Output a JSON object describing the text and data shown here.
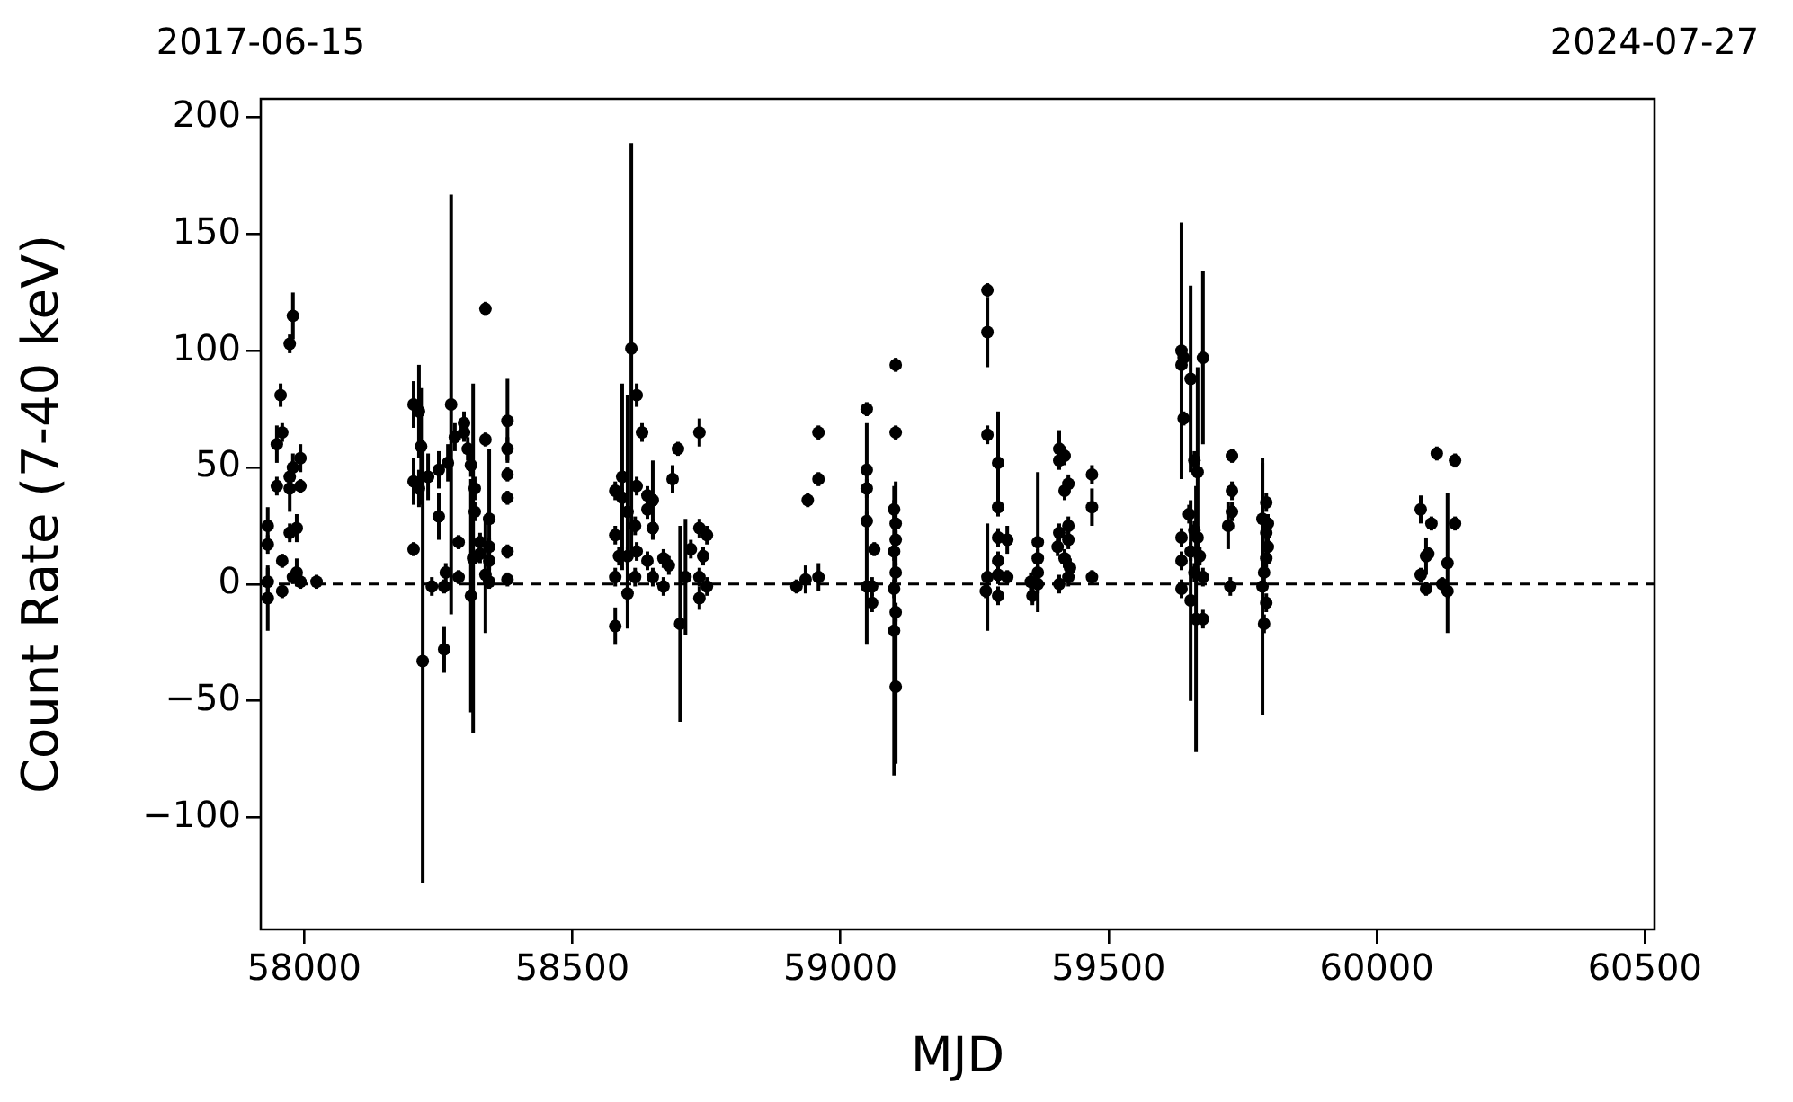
{
  "chart_data": {
    "type": "scatter",
    "xlabel": "MJD",
    "ylabel": "Count Rate (7-40 keV)",
    "xlim": [
      57919,
      60518
    ],
    "xticks": [
      58000,
      58500,
      59000,
      59500,
      60000,
      60500
    ],
    "annotations": [
      "2017-06-15",
      "2024-07-27"
    ],
    "ylim": [
      -148,
      208
    ],
    "yticks": [
      {
        "value": -100,
        "label": "−100"
      },
      {
        "value": -50,
        "label": "−50"
      },
      0,
      50,
      100,
      150,
      200
    ],
    "grid": false,
    "legend": false,
    "marker": "circle",
    "ref_lines": [
      {
        "axis": "y",
        "value": 0,
        "color": "#000000",
        "line_style": "dashed"
      }
    ],
    "series": [
      {
        "color": "#000000",
        "x": [
          57932,
          57932,
          57932,
          57932,
          57959,
          57959,
          57949,
          57956,
          57959,
          57949,
          57973,
          57979,
          57973,
          57973,
          57979,
          57993,
          57993,
          57973,
          57986,
          57986,
          57979,
          57993,
          58023,
          58204,
          58214,
          58204,
          58214,
          58204,
          58221,
          58218,
          58231,
          58238,
          58251,
          58251,
          58261,
          58268,
          58274,
          58264,
          58261,
          58281,
          58298,
          58305,
          58298,
          58288,
          58288,
          58311,
          58318,
          58315,
          58311,
          58318,
          58328,
          58338,
          58338,
          58328,
          58345,
          58345,
          58345,
          58338,
          58345,
          58379,
          58379,
          58379,
          58379,
          58379,
          58379,
          58580,
          58580,
          58580,
          58580,
          58587,
          58593,
          58593,
          58603,
          58603,
          58610,
          58603,
          58620,
          58630,
          58620,
          58640,
          58617,
          58620,
          58617,
          58640,
          58650,
          58650,
          58640,
          58650,
          58670,
          58680,
          58670,
          58687,
          58697,
          58701,
          58711,
          58721,
          58737,
          58737,
          58751,
          58744,
          58737,
          58737,
          58751,
          58918,
          58935,
          58939,
          58959,
          58959,
          58959,
          59049,
          59049,
          59049,
          59049,
          59049,
          59063,
          59059,
          59059,
          59103,
          59103,
          59100,
          59103,
          59103,
          59100,
          59103,
          59100,
          59103,
          59100,
          59103,
          59274,
          59274,
          59274,
          59274,
          59271,
          59294,
          59294,
          59294,
          59294,
          59294,
          59294,
          59311,
          59311,
          59358,
          59355,
          59368,
          59368,
          59368,
          59368,
          59408,
          59408,
          59418,
          59418,
          59425,
          59425,
          59408,
          59405,
          59425,
          59418,
          59428,
          59408,
          59425,
          59469,
          59469,
          59469,
          59636,
          59636,
          59640,
          59640,
          59653,
          59676,
          59666,
          59660,
          59650,
          59660,
          59636,
          59653,
          59636,
          59666,
          59670,
          59676,
          59660,
          59636,
          59653,
          59676,
          59663,
          59730,
          59730,
          59730,
          59723,
          59727,
          59794,
          59787,
          59797,
          59794,
          59797,
          59794,
          59790,
          59787,
          59794,
          59790,
          60112,
          60146,
          60082,
          60102,
          60146,
          60092,
          60096,
          60132,
          60082,
          60092,
          60122,
          60132
        ],
        "values": [
          25,
          17,
          1,
          -6,
          10,
          -3,
          60,
          81,
          65,
          42,
          103,
          115,
          41,
          46,
          50,
          54,
          42,
          22,
          24,
          5,
          3,
          1,
          1,
          77,
          74,
          44,
          41,
          15,
          -33,
          59,
          46,
          -1,
          49,
          29,
          -28,
          52,
          77,
          5,
          -1,
          63,
          69,
          58,
          65,
          18,
          3,
          51,
          41,
          11,
          -5,
          31,
          18,
          118,
          62,
          13,
          28,
          16,
          10,
          4,
          1,
          70,
          58,
          47,
          37,
          14,
          2,
          40,
          21,
          3,
          -18,
          12,
          46,
          37,
          31,
          -4,
          101,
          12,
          81,
          65,
          42,
          38,
          25,
          14,
          3,
          32,
          36,
          24,
          10,
          3,
          11,
          8,
          -1,
          45,
          58,
          -17,
          3,
          15,
          65,
          24,
          21,
          12,
          3,
          -6,
          -1,
          -1,
          2,
          36,
          65,
          45,
          3,
          75,
          49,
          41,
          27,
          -1,
          15,
          -1,
          -8,
          94,
          65,
          32,
          26,
          19,
          14,
          5,
          -2,
          -12,
          -20,
          -44,
          126,
          108,
          64,
          3,
          -3,
          52,
          33,
          20,
          10,
          4,
          -5,
          19,
          3,
          -5,
          1,
          0,
          18,
          11,
          5,
          58,
          53,
          55,
          40,
          43,
          25,
          22,
          16,
          19,
          11,
          7,
          0,
          3,
          47,
          33,
          3,
          100,
          94,
          97,
          71,
          88,
          97,
          48,
          53,
          30,
          23,
          20,
          14,
          10,
          20,
          12,
          3,
          5,
          -2,
          -7,
          -15,
          -15,
          55,
          40,
          31,
          25,
          -1,
          35,
          28,
          26,
          22,
          16,
          11,
          5,
          -1,
          -8,
          -17,
          56,
          53,
          32,
          26,
          26,
          12,
          13,
          9,
          4,
          -2,
          0,
          -3
        ],
        "errors": [
          8,
          4,
          6,
          14,
          3,
          3,
          8,
          5,
          4,
          4,
          4,
          10,
          10,
          4,
          6,
          6,
          3,
          4,
          6,
          6,
          3,
          3,
          3,
          10,
          20,
          10,
          8,
          3,
          95,
          25,
          10,
          4,
          8,
          10,
          10,
          8,
          90,
          4,
          3,
          6,
          5,
          5,
          4,
          3,
          3,
          5,
          5,
          75,
          50,
          4,
          4,
          3,
          3,
          4,
          30,
          4,
          4,
          25,
          3,
          18,
          5,
          3,
          3,
          3,
          3,
          4,
          4,
          4,
          8,
          4,
          40,
          4,
          50,
          4,
          88,
          4,
          5,
          4,
          4,
          4,
          4,
          4,
          4,
          4,
          17,
          4,
          4,
          4,
          4,
          4,
          4,
          6,
          3,
          42,
          25,
          4,
          6,
          4,
          4,
          4,
          4,
          5,
          4,
          3,
          6,
          3,
          3,
          3,
          6,
          3,
          20,
          4,
          4,
          25,
          3,
          4,
          4,
          3,
          3,
          4,
          18,
          4,
          4,
          4,
          4,
          4,
          62,
          33,
          3,
          15,
          4,
          23,
          3,
          22,
          4,
          4,
          4,
          4,
          4,
          6,
          3,
          4,
          4,
          4,
          30,
          4,
          4,
          8,
          4,
          4,
          4,
          4,
          4,
          4,
          4,
          4,
          4,
          4,
          4,
          4,
          4,
          8,
          3,
          55,
          4,
          4,
          3,
          40,
          37,
          45,
          4,
          4,
          4,
          4,
          4,
          4,
          4,
          4,
          4,
          4,
          4,
          43,
          4,
          57,
          3,
          4,
          4,
          10,
          4,
          4,
          24,
          4,
          4,
          4,
          4,
          4,
          55,
          4,
          4,
          3,
          3,
          6,
          3,
          3,
          8,
          3,
          30,
          3,
          3,
          3,
          3
        ]
      }
    ]
  }
}
